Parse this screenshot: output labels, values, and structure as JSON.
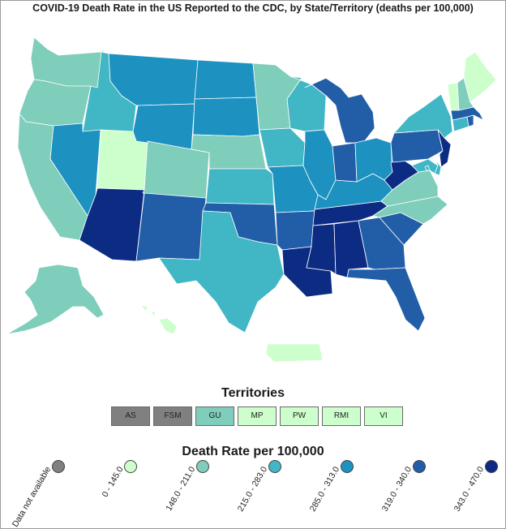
{
  "title": "COVID-19 Death Rate in the US Reported to the CDC, by State/Territory (deaths per 100,000)",
  "colors": {
    "na": "#808080",
    "c1": "#ccffcc",
    "c2": "#7fcdbb",
    "c3": "#41b6c4",
    "c4": "#1d91c0",
    "c5": "#225ea8",
    "c6": "#0c2c84",
    "border": "#ffffff"
  },
  "territories_title": "Territories",
  "territories": [
    {
      "code": "AS",
      "color": "na"
    },
    {
      "code": "FSM",
      "color": "na"
    },
    {
      "code": "GU",
      "color": "c2"
    },
    {
      "code": "MP",
      "color": "c1"
    },
    {
      "code": "PW",
      "color": "c1"
    },
    {
      "code": "RMI",
      "color": "c1"
    },
    {
      "code": "VI",
      "color": "c1"
    }
  ],
  "legend_title": "Death Rate per 100,000",
  "legend": [
    {
      "label": "Data not available",
      "color": "na"
    },
    {
      "label": "0 - 145.0",
      "color": "c1"
    },
    {
      "label": "148.0 - 211.0",
      "color": "c2"
    },
    {
      "label": "215.0 - 283.0",
      "color": "c3"
    },
    {
      "label": "285.0 - 313.0",
      "color": "c4"
    },
    {
      "label": "319.0 - 340.0",
      "color": "c5"
    },
    {
      "label": "343.0 - 470.0",
      "color": "c6"
    }
  ],
  "states": [
    {
      "id": "WA",
      "color": "c2"
    },
    {
      "id": "OR",
      "color": "c2"
    },
    {
      "id": "CA",
      "color": "c2"
    },
    {
      "id": "ID",
      "color": "c3"
    },
    {
      "id": "NV",
      "color": "c4"
    },
    {
      "id": "UT",
      "color": "c1"
    },
    {
      "id": "AZ",
      "color": "c6"
    },
    {
      "id": "MT",
      "color": "c4"
    },
    {
      "id": "WY",
      "color": "c4"
    },
    {
      "id": "CO",
      "color": "c2"
    },
    {
      "id": "NM",
      "color": "c5"
    },
    {
      "id": "ND",
      "color": "c4"
    },
    {
      "id": "SD",
      "color": "c4"
    },
    {
      "id": "NE",
      "color": "c2"
    },
    {
      "id": "KS",
      "color": "c3"
    },
    {
      "id": "OK",
      "color": "c5"
    },
    {
      "id": "TX",
      "color": "c3"
    },
    {
      "id": "MN",
      "color": "c2"
    },
    {
      "id": "IA",
      "color": "c3"
    },
    {
      "id": "MO",
      "color": "c4"
    },
    {
      "id": "AR",
      "color": "c5"
    },
    {
      "id": "LA",
      "color": "c6"
    },
    {
      "id": "WI",
      "color": "c3"
    },
    {
      "id": "IL",
      "color": "c4"
    },
    {
      "id": "MS",
      "color": "c6"
    },
    {
      "id": "AL",
      "color": "c6"
    },
    {
      "id": "TN",
      "color": "c6"
    },
    {
      "id": "KY",
      "color": "c4"
    },
    {
      "id": "MI",
      "color": "c5"
    },
    {
      "id": "IN",
      "color": "c5"
    },
    {
      "id": "OH",
      "color": "c4"
    },
    {
      "id": "GA",
      "color": "c5"
    },
    {
      "id": "FL",
      "color": "c5"
    },
    {
      "id": "SC",
      "color": "c5"
    },
    {
      "id": "NC",
      "color": "c2"
    },
    {
      "id": "VA",
      "color": "c2"
    },
    {
      "id": "WV",
      "color": "c6"
    },
    {
      "id": "PA",
      "color": "c5"
    },
    {
      "id": "NY",
      "color": "c3"
    },
    {
      "id": "NJ",
      "color": "c6"
    },
    {
      "id": "MD",
      "color": "c3"
    },
    {
      "id": "DE",
      "color": "c3"
    },
    {
      "id": "CT",
      "color": "c3"
    },
    {
      "id": "RI",
      "color": "c5"
    },
    {
      "id": "MA",
      "color": "c5"
    },
    {
      "id": "VT",
      "color": "c1"
    },
    {
      "id": "NH",
      "color": "c2"
    },
    {
      "id": "ME",
      "color": "c1"
    },
    {
      "id": "AK",
      "color": "c2"
    },
    {
      "id": "HI",
      "color": "c1"
    },
    {
      "id": "PR",
      "color": "c1"
    },
    {
      "id": "DC",
      "color": "c3"
    }
  ]
}
